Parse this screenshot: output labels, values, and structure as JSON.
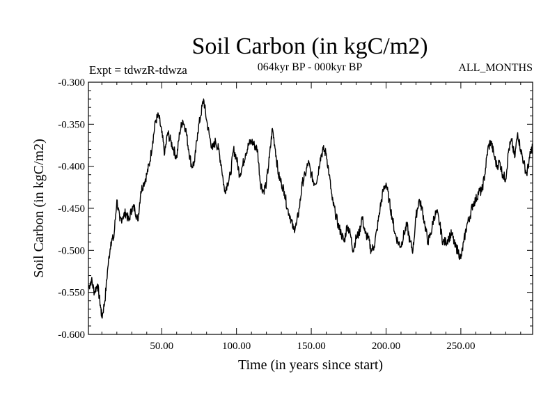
{
  "header": {
    "left": "Expt = tdwzR-tdwza",
    "center": "064kyr BP - 000kyr BP",
    "right": "ALL_MONTHS"
  },
  "chart_data": {
    "type": "line",
    "title": "Soil Carbon (in kgC/m2)",
    "xlabel": "Time (in years since start)",
    "ylabel": "Soil Carbon (in kgC/m2)",
    "xlim": [
      1,
      298
    ],
    "ylim": [
      -0.6,
      -0.3
    ],
    "x_major_ticks": [
      50,
      100,
      150,
      200,
      250
    ],
    "x_tick_labels": [
      "50.00",
      "100.00",
      "150.00",
      "200.00",
      "250.00"
    ],
    "y_major_ticks": [
      -0.6,
      -0.55,
      -0.5,
      -0.45,
      -0.4,
      -0.35,
      -0.3
    ],
    "y_tick_labels": [
      "-0.600",
      "-0.550",
      "-0.500",
      "-0.450",
      "-0.400",
      "-0.350",
      "-0.300"
    ],
    "grid": false,
    "series": [
      {
        "color": "#000000",
        "points": [
          [
            1,
            -0.545
          ],
          [
            3,
            -0.535
          ],
          [
            5,
            -0.55
          ],
          [
            7,
            -0.54
          ],
          [
            9,
            -0.565
          ],
          [
            10,
            -0.58
          ],
          [
            12,
            -0.56
          ],
          [
            14,
            -0.52
          ],
          [
            16,
            -0.49
          ],
          [
            18,
            -0.485
          ],
          [
            20,
            -0.44
          ],
          [
            22,
            -0.465
          ],
          [
            24,
            -0.46
          ],
          [
            26,
            -0.455
          ],
          [
            28,
            -0.465
          ],
          [
            30,
            -0.45
          ],
          [
            32,
            -0.45
          ],
          [
            34,
            -0.465
          ],
          [
            36,
            -0.43
          ],
          [
            38,
            -0.42
          ],
          [
            40,
            -0.41
          ],
          [
            42,
            -0.395
          ],
          [
            44,
            -0.37
          ],
          [
            46,
            -0.345
          ],
          [
            48,
            -0.34
          ],
          [
            50,
            -0.36
          ],
          [
            52,
            -0.385
          ],
          [
            54,
            -0.36
          ],
          [
            56,
            -0.37
          ],
          [
            58,
            -0.38
          ],
          [
            60,
            -0.39
          ],
          [
            62,
            -0.36
          ],
          [
            64,
            -0.345
          ],
          [
            66,
            -0.355
          ],
          [
            68,
            -0.38
          ],
          [
            70,
            -0.4
          ],
          [
            72,
            -0.395
          ],
          [
            74,
            -0.36
          ],
          [
            76,
            -0.34
          ],
          [
            78,
            -0.32
          ],
          [
            80,
            -0.345
          ],
          [
            82,
            -0.365
          ],
          [
            84,
            -0.38
          ],
          [
            86,
            -0.37
          ],
          [
            88,
            -0.38
          ],
          [
            90,
            -0.4
          ],
          [
            92,
            -0.43
          ],
          [
            94,
            -0.42
          ],
          [
            96,
            -0.41
          ],
          [
            98,
            -0.38
          ],
          [
            100,
            -0.39
          ],
          [
            102,
            -0.41
          ],
          [
            104,
            -0.4
          ],
          [
            106,
            -0.385
          ],
          [
            108,
            -0.375
          ],
          [
            110,
            -0.37
          ],
          [
            112,
            -0.375
          ],
          [
            114,
            -0.38
          ],
          [
            116,
            -0.42
          ],
          [
            118,
            -0.43
          ],
          [
            120,
            -0.42
          ],
          [
            122,
            -0.39
          ],
          [
            124,
            -0.355
          ],
          [
            126,
            -0.38
          ],
          [
            128,
            -0.41
          ],
          [
            130,
            -0.42
          ],
          [
            132,
            -0.43
          ],
          [
            134,
            -0.45
          ],
          [
            136,
            -0.46
          ],
          [
            138,
            -0.475
          ],
          [
            140,
            -0.47
          ],
          [
            142,
            -0.45
          ],
          [
            144,
            -0.42
          ],
          [
            146,
            -0.41
          ],
          [
            148,
            -0.395
          ],
          [
            150,
            -0.41
          ],
          [
            152,
            -0.42
          ],
          [
            154,
            -0.415
          ],
          [
            156,
            -0.39
          ],
          [
            158,
            -0.38
          ],
          [
            160,
            -0.385
          ],
          [
            162,
            -0.41
          ],
          [
            164,
            -0.44
          ],
          [
            166,
            -0.455
          ],
          [
            168,
            -0.47
          ],
          [
            170,
            -0.48
          ],
          [
            172,
            -0.49
          ],
          [
            174,
            -0.47
          ],
          [
            176,
            -0.48
          ],
          [
            178,
            -0.5
          ],
          [
            180,
            -0.485
          ],
          [
            182,
            -0.48
          ],
          [
            184,
            -0.46
          ],
          [
            186,
            -0.48
          ],
          [
            188,
            -0.485
          ],
          [
            190,
            -0.5
          ],
          [
            192,
            -0.495
          ],
          [
            194,
            -0.475
          ],
          [
            196,
            -0.45
          ],
          [
            198,
            -0.43
          ],
          [
            200,
            -0.42
          ],
          [
            202,
            -0.44
          ],
          [
            204,
            -0.46
          ],
          [
            206,
            -0.48
          ],
          [
            208,
            -0.49
          ],
          [
            210,
            -0.495
          ],
          [
            212,
            -0.48
          ],
          [
            214,
            -0.47
          ],
          [
            216,
            -0.49
          ],
          [
            218,
            -0.5
          ],
          [
            220,
            -0.46
          ],
          [
            222,
            -0.44
          ],
          [
            224,
            -0.45
          ],
          [
            226,
            -0.47
          ],
          [
            228,
            -0.49
          ],
          [
            230,
            -0.48
          ],
          [
            232,
            -0.46
          ],
          [
            234,
            -0.455
          ],
          [
            236,
            -0.47
          ],
          [
            238,
            -0.49
          ],
          [
            240,
            -0.49
          ],
          [
            242,
            -0.485
          ],
          [
            244,
            -0.48
          ],
          [
            246,
            -0.495
          ],
          [
            248,
            -0.5
          ],
          [
            250,
            -0.51
          ],
          [
            252,
            -0.49
          ],
          [
            254,
            -0.47
          ],
          [
            256,
            -0.46
          ],
          [
            258,
            -0.445
          ],
          [
            260,
            -0.44
          ],
          [
            262,
            -0.43
          ],
          [
            264,
            -0.43
          ],
          [
            266,
            -0.41
          ],
          [
            268,
            -0.38
          ],
          [
            270,
            -0.37
          ],
          [
            272,
            -0.385
          ],
          [
            274,
            -0.4
          ],
          [
            276,
            -0.395
          ],
          [
            278,
            -0.41
          ],
          [
            280,
            -0.415
          ],
          [
            282,
            -0.38
          ],
          [
            284,
            -0.37
          ],
          [
            286,
            -0.39
          ],
          [
            288,
            -0.36
          ],
          [
            290,
            -0.38
          ],
          [
            292,
            -0.395
          ],
          [
            294,
            -0.41
          ],
          [
            296,
            -0.39
          ],
          [
            298,
            -0.375
          ]
        ]
      }
    ]
  }
}
